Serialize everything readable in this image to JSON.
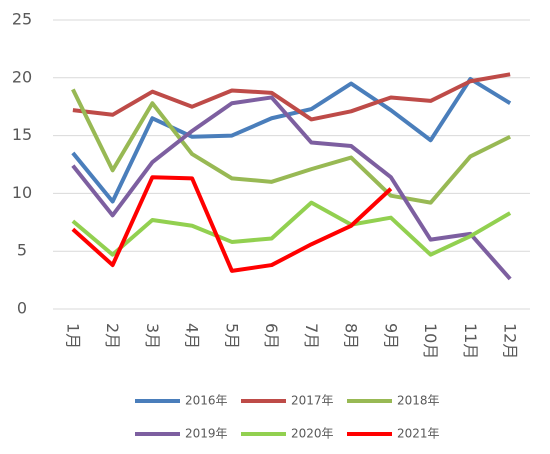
{
  "chart_data": {
    "type": "line",
    "categories": [
      "1月",
      "2月",
      "3月",
      "4月",
      "5月",
      "6月",
      "7月",
      "8月",
      "9月",
      "10月",
      "11月",
      "12月"
    ],
    "series": [
      {
        "name": "2016年",
        "color": "#4a7ebb",
        "values": [
          13.5,
          9.3,
          16.5,
          14.9,
          15.0,
          16.5,
          17.3,
          19.5,
          17.2,
          14.6,
          19.9,
          17.8
        ]
      },
      {
        "name": "2017年",
        "color": "#be4b48",
        "values": [
          17.2,
          16.8,
          18.8,
          17.5,
          18.9,
          18.7,
          16.4,
          17.1,
          18.3,
          18.0,
          19.7,
          20.3
        ]
      },
      {
        "name": "2018年",
        "color": "#98b954",
        "values": [
          19.0,
          12.0,
          17.8,
          13.4,
          11.3,
          11.0,
          12.1,
          13.1,
          9.8,
          9.2,
          13.2,
          14.9
        ]
      },
      {
        "name": "2019年",
        "color": "#7d5fa0",
        "values": [
          12.4,
          8.1,
          12.7,
          15.4,
          17.8,
          18.3,
          14.4,
          14.1,
          11.4,
          6.0,
          6.5,
          2.6
        ]
      },
      {
        "name": "2020年",
        "color": "#92d050",
        "values": [
          7.6,
          4.7,
          7.7,
          7.2,
          5.8,
          6.1,
          9.2,
          7.3,
          7.9,
          4.7,
          6.3,
          8.3
        ]
      },
      {
        "name": "2021年",
        "color": "#ff0000",
        "values": [
          6.9,
          3.8,
          11.4,
          11.3,
          3.3,
          3.8,
          5.6,
          7.2,
          10.4,
          null,
          null,
          null
        ]
      }
    ],
    "ylim": [
      0,
      25
    ],
    "yticks": [
      0,
      5,
      10,
      15,
      20,
      25
    ],
    "grid": true,
    "legend": "bottom"
  }
}
